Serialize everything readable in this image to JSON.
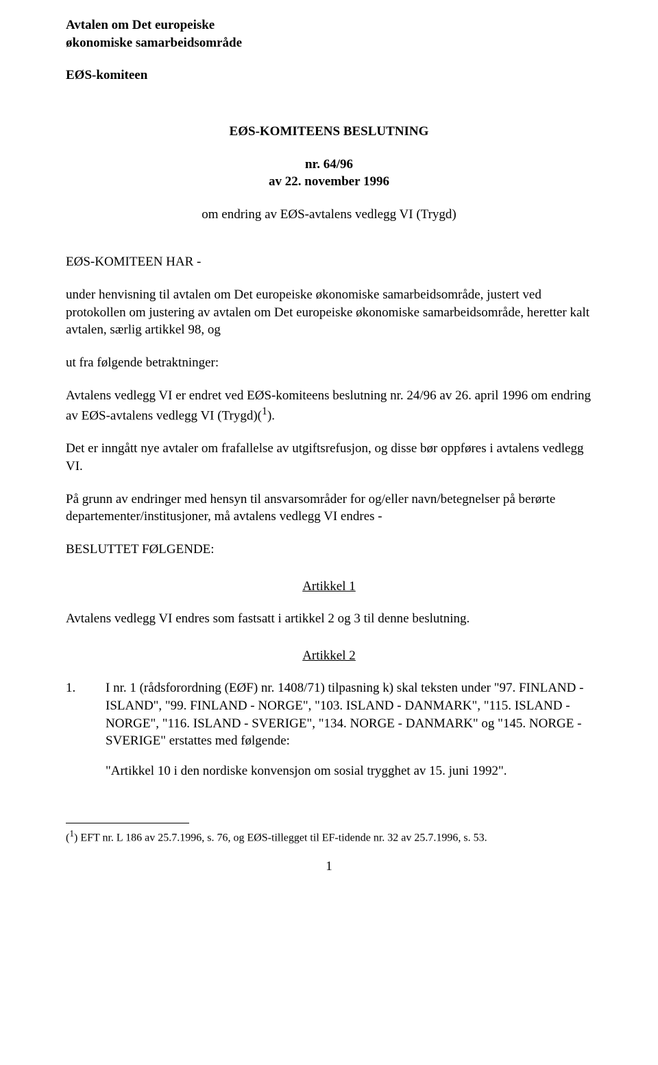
{
  "header": {
    "line1": "Avtalen om Det europeiske",
    "line2": "økonomiske samarbeidsområde",
    "committee": "EØS-komiteen"
  },
  "title": "EØS-KOMITEENS BESLUTNING",
  "nr_line1": "nr. 64/96",
  "nr_line2": "av 22. november 1996",
  "subject": "om endring av EØS-avtalens vedlegg VI (Trygd)",
  "recitals": {
    "lead": "EØS-KOMITEEN HAR -",
    "p1": "under henvisning til avtalen om Det europeiske økonomiske samarbeidsområde, justert ved protokollen om justering av avtalen om Det europeiske økonomiske samarbeidsområde, heretter kalt avtalen, særlig artikkel 98, og",
    "p2": "ut fra følgende betraktninger:",
    "p3_pre": "Avtalens vedlegg VI er endret ved EØS-komiteens beslutning nr. 24/96 av 26. april 1996 om endring av EØS-avtalens vedlegg VI (Trygd)(",
    "p3_sup": "1",
    "p3_post": ").",
    "p4": "Det er inngått nye avtaler om frafallelse av utgiftsrefusjon, og disse bør oppføres i avtalens vedlegg VI.",
    "p5": "På grunn av endringer med hensyn til ansvarsområder for og/eller navn/betegnelser på berørte departementer/institusjoner, må avtalens vedlegg VI endres -",
    "resolved": "BESLUTTET FØLGENDE:"
  },
  "articles": {
    "a1_heading": "Artikkel 1",
    "a1_text": "Avtalens vedlegg VI endres som fastsatt i artikkel 2 og 3 til denne beslutning.",
    "a2_heading": "Artikkel 2",
    "a2_item1_num": "1.",
    "a2_item1_text": "I nr. 1 (rådsforordning (EØF) nr. 1408/71) tilpasning k) skal teksten under \"97. FINLAND - ISLAND\", \"99. FINLAND - NORGE\", \"103. ISLAND - DANMARK\", \"115. ISLAND - NORGE\", \"116. ISLAND - SVERIGE\", \"134. NORGE - DANMARK\" og \"145. NORGE - SVERIGE\" erstattes med følgende:",
    "a2_quote": "\"Artikkel 10 i den nordiske konvensjon om sosial trygghet av 15. juni 1992\"."
  },
  "footnote": {
    "sup": "1",
    "text_pre": "(",
    "text_post": ") EFT nr. L 186 av 25.7.1996, s. 76, og EØS-tillegget til EF-tidende nr. 32 av 25.7.1996, s. 53."
  },
  "page_number": "1"
}
